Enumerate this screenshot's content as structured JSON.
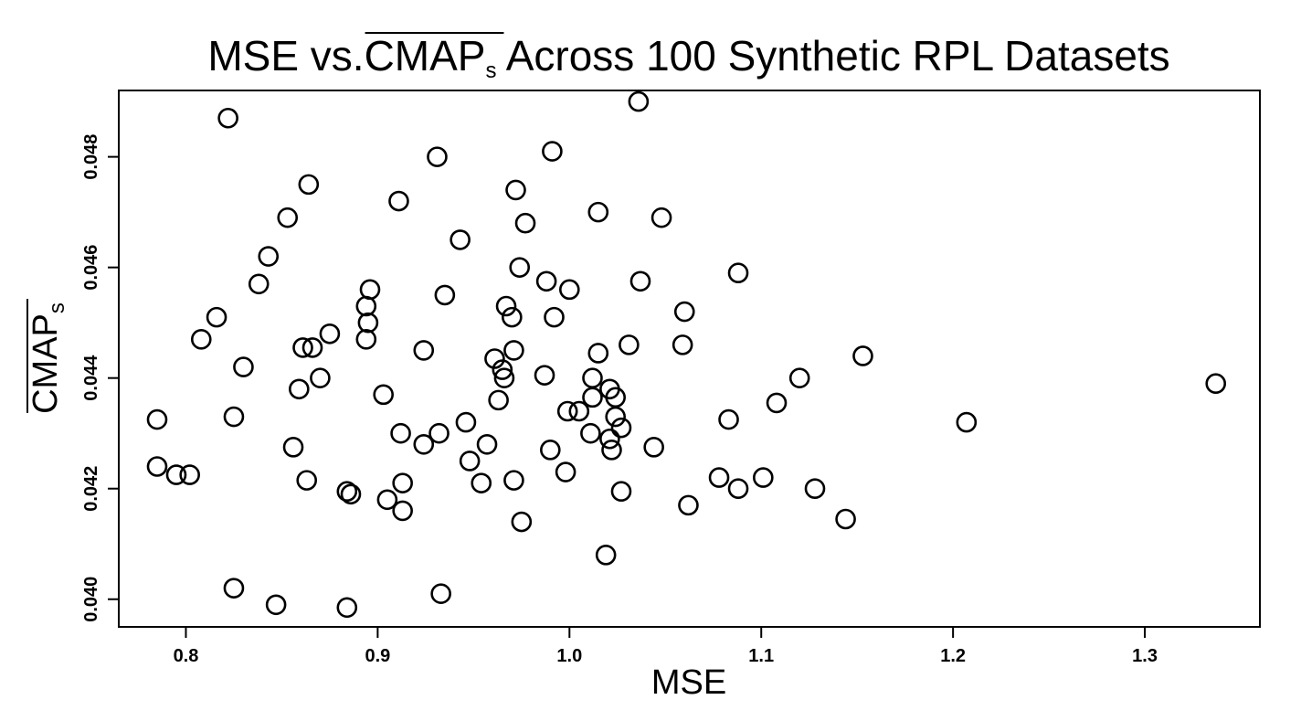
{
  "chart_data": {
    "type": "scatter",
    "title": {
      "prefix": "MSE vs.",
      "overlined": "CMAP",
      "subscript": "s",
      "suffix": " Across 100 Synthetic RPL Datasets"
    },
    "xlabel": "MSE",
    "ylabel": {
      "overlined": "CMAP",
      "subscript": "s"
    },
    "xlim": [
      0.765,
      1.36
    ],
    "ylim": [
      0.0395,
      0.0492
    ],
    "x_ticks": [
      0.8,
      0.9,
      1.0,
      1.1,
      1.2,
      1.3
    ],
    "x_tick_labels": [
      "0.8",
      "0.9",
      "1.0",
      "1.1",
      "1.2",
      "1.3"
    ],
    "y_ticks": [
      0.04,
      0.042,
      0.044,
      0.046,
      0.048
    ],
    "y_tick_labels": [
      "0.040",
      "0.042",
      "0.044",
      "0.046",
      "0.048"
    ],
    "marker": "open-circle",
    "color": "#000000",
    "x": [
      0.822,
      1.036,
      0.931,
      0.991,
      0.864,
      0.972,
      1.015,
      0.911,
      0.853,
      1.048,
      0.977,
      0.943,
      0.843,
      0.974,
      1.088,
      0.838,
      0.988,
      1.037,
      1.0,
      0.896,
      0.935,
      0.967,
      0.894,
      0.816,
      1.06,
      0.97,
      0.895,
      0.992,
      0.875,
      0.808,
      0.894,
      1.059,
      1.031,
      0.861,
      0.866,
      0.971,
      0.924,
      1.015,
      1.153,
      0.961,
      0.83,
      0.965,
      0.987,
      0.966,
      1.012,
      1.12,
      0.87,
      0.859,
      1.021,
      1.012,
      0.903,
      1.024,
      0.963,
      1.108,
      0.999,
      1.005,
      0.785,
      0.825,
      1.024,
      1.083,
      1.207,
      0.946,
      1.027,
      0.912,
      0.932,
      1.011,
      1.021,
      0.924,
      0.957,
      0.856,
      1.044,
      0.99,
      1.022,
      0.948,
      0.998,
      0.785,
      0.795,
      0.802,
      1.078,
      1.101,
      0.863,
      0.971,
      0.954,
      0.913,
      1.088,
      1.128,
      1.027,
      0.884,
      0.886,
      0.905,
      1.062,
      0.913,
      0.975,
      1.144,
      1.019,
      0.825,
      0.933,
      0.847,
      0.884,
      1.337
    ],
    "y": [
      0.0487,
      0.049,
      0.048,
      0.0481,
      0.0475,
      0.0474,
      0.047,
      0.0472,
      0.0469,
      0.0469,
      0.0468,
      0.0465,
      0.0462,
      0.046,
      0.0459,
      0.0457,
      0.04575,
      0.04575,
      0.0456,
      0.0456,
      0.0455,
      0.0453,
      0.0453,
      0.0451,
      0.0452,
      0.0451,
      0.045,
      0.0451,
      0.0448,
      0.0447,
      0.0447,
      0.0446,
      0.0446,
      0.04455,
      0.04455,
      0.0445,
      0.0445,
      0.04445,
      0.0444,
      0.04435,
      0.0442,
      0.04415,
      0.04405,
      0.044,
      0.044,
      0.044,
      0.044,
      0.0438,
      0.0438,
      0.04365,
      0.0437,
      0.04365,
      0.0436,
      0.04355,
      0.0434,
      0.0434,
      0.04325,
      0.0433,
      0.0433,
      0.04325,
      0.0432,
      0.0432,
      0.0431,
      0.043,
      0.043,
      0.043,
      0.0429,
      0.0428,
      0.0428,
      0.04275,
      0.04275,
      0.0427,
      0.0427,
      0.0425,
      0.0423,
      0.0424,
      0.04225,
      0.04225,
      0.0422,
      0.0422,
      0.04215,
      0.04215,
      0.0421,
      0.0421,
      0.042,
      0.042,
      0.04195,
      0.04195,
      0.0419,
      0.0418,
      0.0417,
      0.0416,
      0.0414,
      0.04145,
      0.0408,
      0.0402,
      0.0401,
      0.0399,
      0.03985,
      0.0439
    ]
  }
}
